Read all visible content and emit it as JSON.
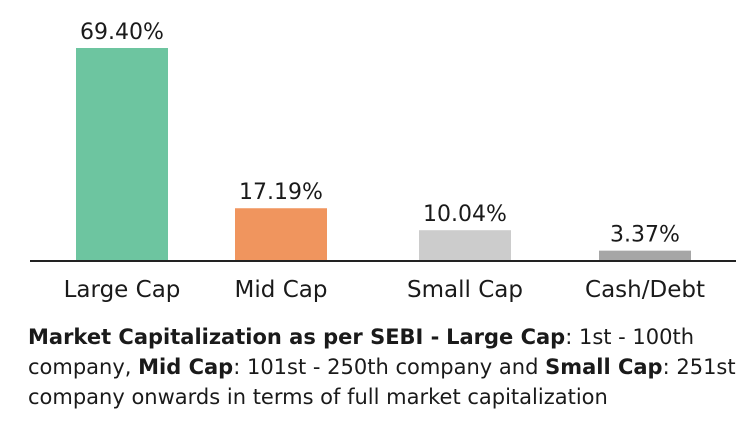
{
  "chart_data": {
    "type": "bar",
    "categories": [
      "Large Cap",
      "Mid Cap",
      "Small Cap",
      "Cash/Debt"
    ],
    "values": [
      69.4,
      17.19,
      10.04,
      3.37
    ],
    "data_labels": [
      "69.40%",
      "17.19%",
      "10.04%",
      "3.37%"
    ],
    "colors": [
      "#6dc5a0",
      "#f0955e",
      "#cccccc",
      "#a6a6a6"
    ],
    "ylim": [
      0,
      69.4
    ],
    "grid": false,
    "legend": "none"
  },
  "note": {
    "heading": "Market Capitalization as per SEBI -",
    "large_label": "Large Cap",
    "large_text": ": 1st - 100th company, ",
    "mid_label": "Mid Cap",
    "mid_text": ": 101st - 250th company and ",
    "small_label": "Small Cap",
    "small_text": ": 251st company onwards in terms of full market capitalization"
  }
}
